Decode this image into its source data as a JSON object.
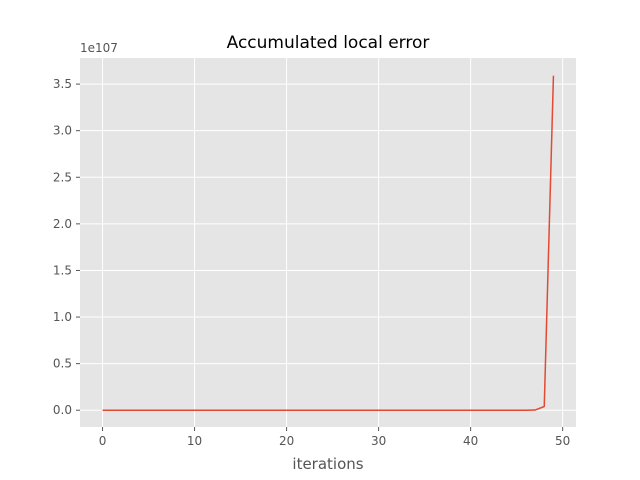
{
  "chart_data": {
    "type": "line",
    "title": "Accumulated local error",
    "xlabel": "iterations",
    "ylabel": "",
    "y_offset_label": "1e107",
    "style": "ggplot",
    "grid": true,
    "xlim": [
      -2.45,
      51.45
    ],
    "ylim": [
      -0.18,
      3.78
    ],
    "x_ticks": [
      0,
      10,
      20,
      30,
      40,
      50
    ],
    "x_tick_labels": [
      "0",
      "10",
      "20",
      "30",
      "40",
      "50"
    ],
    "y_ticks": [
      0.0,
      0.5,
      1.0,
      1.5,
      2.0,
      2.5,
      3.0,
      3.5
    ],
    "y_tick_labels": [
      "0.0",
      "0.5",
      "1.0",
      "1.5",
      "2.0",
      "2.5",
      "3.0",
      "3.5"
    ],
    "series": [
      {
        "color": "#E24A33",
        "x": [
          0,
          1,
          2,
          3,
          4,
          5,
          6,
          7,
          8,
          9,
          10,
          11,
          12,
          13,
          14,
          15,
          16,
          17,
          18,
          19,
          20,
          21,
          22,
          23,
          24,
          25,
          26,
          27,
          28,
          29,
          30,
          31,
          32,
          33,
          34,
          35,
          36,
          37,
          38,
          39,
          40,
          41,
          42,
          43,
          44,
          45,
          46,
          47,
          48,
          49
        ],
        "y": [
          0,
          0,
          0,
          0,
          0,
          0,
          0,
          0,
          0,
          0,
          0,
          0,
          0,
          0,
          0,
          0,
          0,
          0,
          0,
          0,
          0,
          0,
          0,
          0,
          0,
          0,
          0,
          0,
          0,
          0,
          0,
          0,
          0,
          0,
          0,
          0,
          0,
          0,
          0,
          0,
          0,
          0,
          0,
          0,
          0,
          0,
          0,
          0.002,
          0.04,
          3.59
        ]
      }
    ]
  },
  "colors": {
    "plot_background": "#E5E5E5",
    "grid": "#FFFFFF",
    "tick": "#555555"
  }
}
